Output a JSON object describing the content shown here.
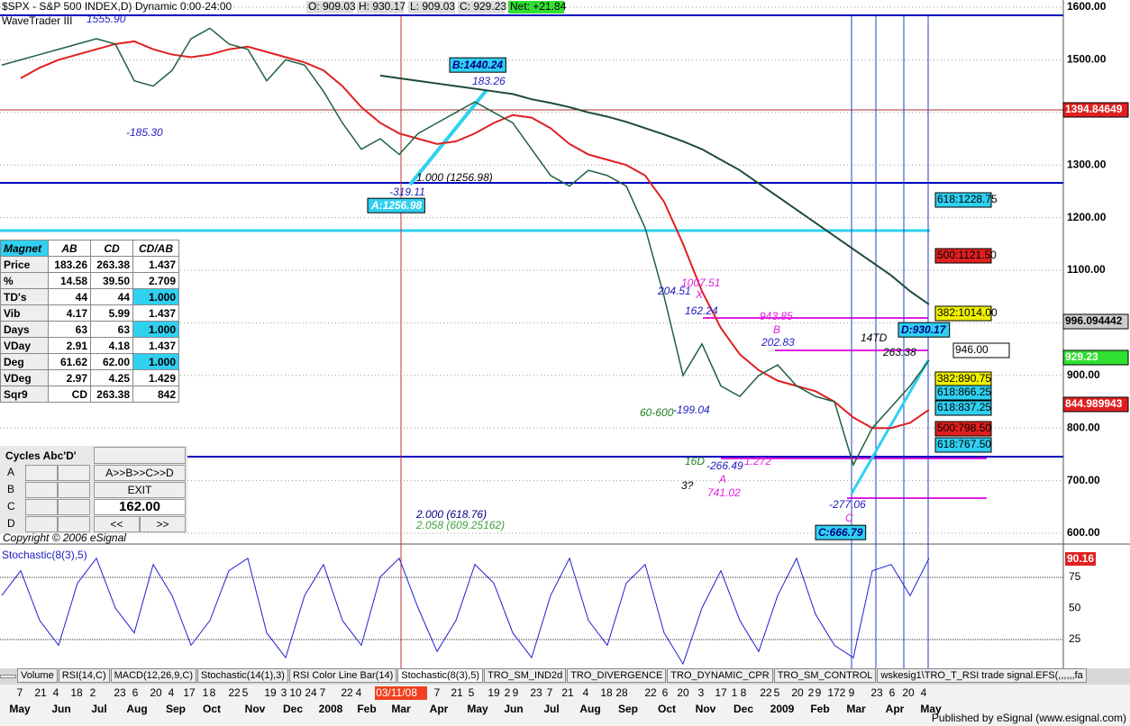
{
  "header": {
    "symbol": "$SPX - S&P 500 INDEX,D) Dynamic 0:00-24:00",
    "open": "O: 909.03",
    "high": "H: 930.17",
    "low": "L: 909.03",
    "close": "C: 929.23",
    "net": "Net: +21.84",
    "study": "WaveTrader III"
  },
  "price_axis": [
    "1600.00",
    "1500.00",
    "1400.00",
    "1300.00",
    "1200.00",
    "1100.00",
    "1000.00",
    "900.00",
    "800.00",
    "700.00",
    "600.00"
  ],
  "price_scale": [
    600,
    1600
  ],
  "price": [
    1490,
    1500,
    1510,
    1520,
    1530,
    1540,
    1530,
    1460,
    1450,
    1480,
    1540,
    1560,
    1530,
    1520,
    1460,
    1500,
    1490,
    1440,
    1380,
    1330,
    1350,
    1320,
    1360,
    1380,
    1400,
    1420,
    1400,
    1380,
    1330,
    1280,
    1260,
    1290,
    1280,
    1260,
    1180,
    1050,
    900,
    960,
    880,
    860,
    900,
    920,
    880,
    860,
    850,
    730,
    800,
    840,
    880,
    929
  ],
  "ma_fast": [
    null,
    1465,
    1485,
    1500,
    1510,
    1520,
    1530,
    1535,
    1520,
    1510,
    1505,
    1510,
    1520,
    1525,
    1515,
    1505,
    1495,
    1480,
    1450,
    1410,
    1380,
    1360,
    1350,
    1340,
    1345,
    1360,
    1380,
    1395,
    1390,
    1370,
    1340,
    1320,
    1310,
    1300,
    1280,
    1230,
    1150,
    1060,
    990,
    940,
    910,
    890,
    880,
    870,
    850,
    820,
    800,
    800,
    810,
    835
  ],
  "ma_slow": [
    null,
    null,
    null,
    null,
    null,
    null,
    null,
    null,
    null,
    null,
    null,
    null,
    null,
    null,
    null,
    null,
    null,
    null,
    null,
    null,
    1470,
    1465,
    1460,
    1455,
    1450,
    1445,
    1440,
    1435,
    1425,
    1418,
    1410,
    1400,
    1392,
    1382,
    1370,
    1358,
    1345,
    1330,
    1310,
    1290,
    1265,
    1240,
    1215,
    1190,
    1165,
    1140,
    1115,
    1090,
    1060,
    1035
  ],
  "stochastic": {
    "title": "Stochastic(8(3),5)",
    "axis": [
      "75",
      "50",
      "25"
    ],
    "scale": [
      0,
      100
    ],
    "values": [
      60,
      80,
      40,
      20,
      70,
      90,
      50,
      30,
      85,
      60,
      20,
      40,
      80,
      90,
      30,
      10,
      60,
      85,
      40,
      20,
      75,
      90,
      50,
      15,
      40,
      85,
      70,
      30,
      10,
      60,
      90,
      40,
      20,
      70,
      85,
      30,
      5,
      50,
      80,
      40,
      15,
      60,
      90,
      45,
      20,
      10,
      80,
      85,
      60,
      90
    ],
    "last": "90.16"
  },
  "annotations": [
    "1555.90",
    "-185.30",
    "B:1440.24",
    "183.26",
    "-319.11",
    "1.000 (1256.98)",
    "A:1256.98",
    "1007.51",
    "X",
    "204.51",
    "162.24",
    "943.85",
    "B",
    "202.83",
    "14TD",
    "263.38",
    "D:930.17",
    "60-600",
    "-199.04",
    "16D",
    "-266.49",
    "1.272",
    "3?",
    "A",
    "741.02",
    "-277.06",
    "C",
    "C:666.79",
    "2.000 (618.76)",
    "2.058 (609.25162)",
    "Copyright © 2006 eSignal"
  ],
  "right_labels": [
    "1394.84649",
    "618:1228.75",
    "500:1121.50",
    "382:1014.00",
    "996.094442",
    "946.00",
    "929.23",
    "382:890.75",
    "618:866.25",
    "618:837.25",
    "844.989943",
    "500:798.50",
    "618:767.50"
  ],
  "magnet": {
    "header": [
      "Magnet",
      "AB",
      "CD",
      "CD/AB"
    ],
    "rows": [
      [
        "Price",
        "183.26",
        "263.38",
        "1.437"
      ],
      [
        "%",
        "14.58",
        "39.50",
        "2.709"
      ],
      [
        "TD's",
        "44",
        "44",
        "1.000"
      ],
      [
        "Vib",
        "4.17",
        "5.99",
        "1.437"
      ],
      [
        "Days",
        "63",
        "63",
        "1.000"
      ],
      [
        "VDay",
        "2.91",
        "4.18",
        "1.437"
      ],
      [
        "Deg",
        "61.62",
        "62.00",
        "1.000"
      ],
      [
        "VDeg",
        "2.97",
        "4.25",
        "1.429"
      ],
      [
        "Sqr9",
        "CD",
        "263.38",
        "842"
      ]
    ]
  },
  "cycles": {
    "title": "Cycles Abc'D'",
    "rows": [
      "A",
      "B",
      "C",
      "D"
    ],
    "sequence": "A>>B>>C>>D",
    "exit": "EXIT",
    "value": "162.00",
    "prev": "<<",
    "next": ">>"
  },
  "tabs": [
    "Volume",
    "RSI(14,C)",
    "MACD(12,26,9,C)",
    "Stochastic(14(1),3)",
    "RSI Color Line Bar(14)",
    "Stochastic(8(3),5)",
    "TRO_SM_IND2d",
    "TRO_DIVERGENCE",
    "TRO_DYNAMIC_CPR",
    "TRO_SM_CONTROL",
    "wskesig1\\TRO_T_RSI trade signal.EFS(,,,,,,fa"
  ],
  "days": [
    "7",
    "21",
    "4",
    "18",
    "2",
    "23",
    "6",
    "20",
    "4",
    "17",
    "1",
    "8",
    "22",
    "5",
    "19",
    "3",
    "10",
    "24",
    "7",
    "22",
    "4",
    "03/11/08",
    "7",
    "21",
    "5",
    "19",
    "2",
    "9",
    "23",
    "7",
    "21",
    "4",
    "18",
    "28",
    "22",
    "6",
    "20",
    "3",
    "17",
    "1",
    "8",
    "22",
    "5",
    "20",
    "2",
    "9",
    "17",
    "2",
    "9",
    "23",
    "6",
    "20",
    "4"
  ],
  "months": [
    "May",
    "Jun",
    "Jul",
    "Aug",
    "Sep",
    "Oct",
    "Nov",
    "Dec",
    "2008",
    "Feb",
    "Mar",
    "Apr",
    "May",
    "Jun",
    "Jul",
    "Aug",
    "Sep",
    "Oct",
    "Nov",
    "Dec",
    "2009",
    "Feb",
    "Mar",
    "Apr",
    "May"
  ],
  "footer": "Published by eSignal (www.esignal.com)"
}
